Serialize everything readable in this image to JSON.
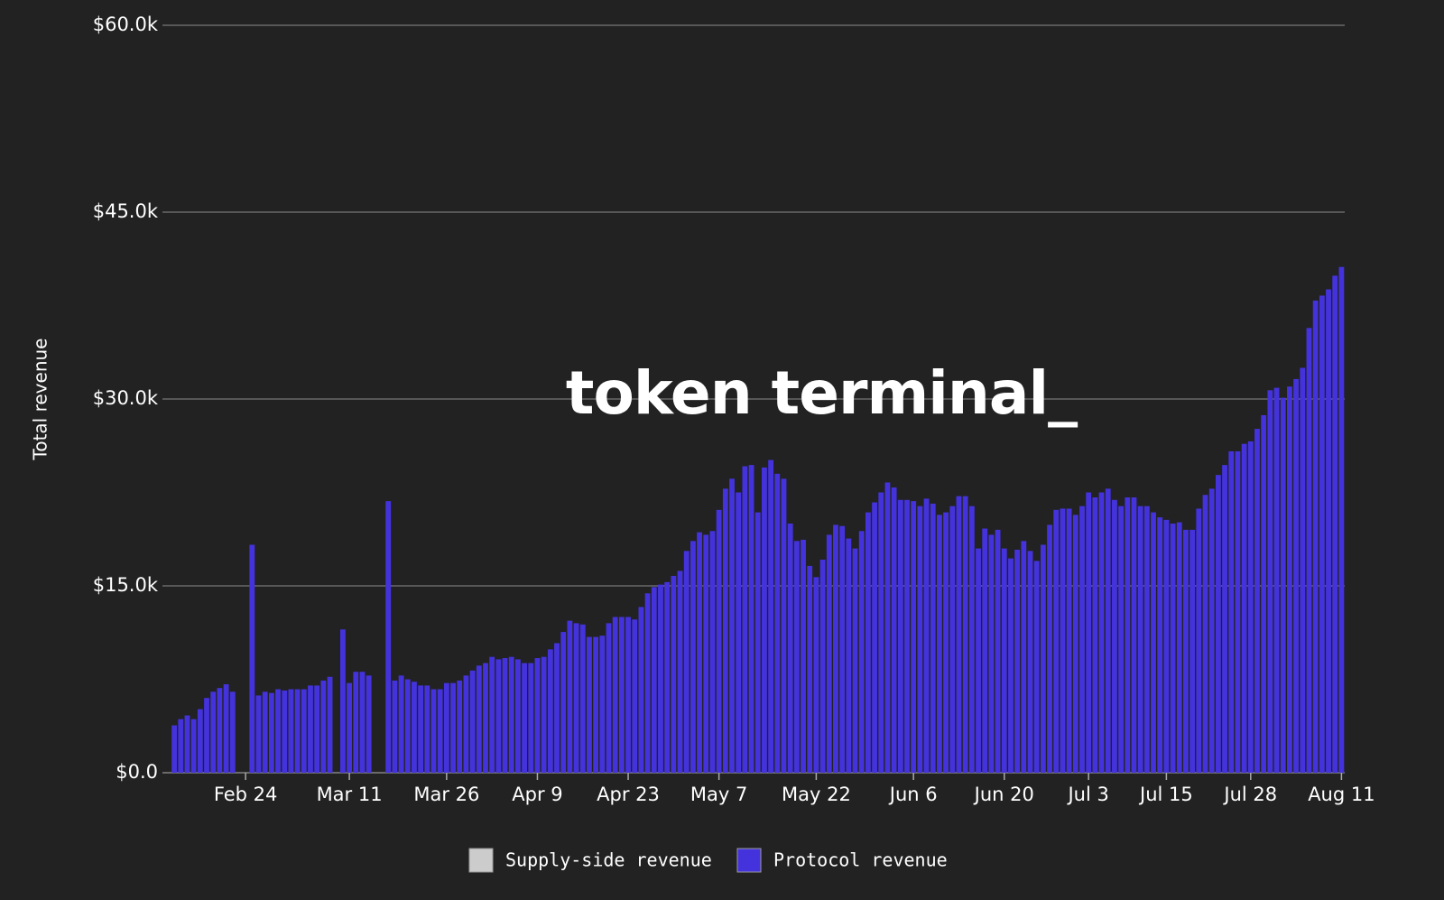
{
  "chart_data": {
    "type": "bar",
    "y_label": "Total revenue",
    "watermark": "token terminal_",
    "categories": [
      null,
      null,
      null,
      null,
      null,
      null,
      null,
      null,
      null,
      null,
      null,
      "Feb 24",
      null,
      null,
      null,
      null,
      null,
      null,
      null,
      null,
      null,
      null,
      null,
      null,
      null,
      null,
      null,
      "Mar 11",
      null,
      null,
      null,
      null,
      null,
      null,
      null,
      null,
      null,
      null,
      null,
      null,
      null,
      null,
      "Mar 26",
      null,
      null,
      null,
      null,
      null,
      null,
      null,
      null,
      null,
      null,
      null,
      null,
      null,
      "Apr 9",
      null,
      null,
      null,
      null,
      null,
      null,
      null,
      null,
      null,
      null,
      null,
      null,
      null,
      "Apr 23",
      null,
      null,
      null,
      null,
      null,
      null,
      null,
      null,
      null,
      null,
      null,
      null,
      null,
      "May 7",
      null,
      null,
      null,
      null,
      null,
      null,
      null,
      null,
      null,
      null,
      null,
      null,
      null,
      null,
      "May 22",
      null,
      null,
      null,
      null,
      null,
      null,
      null,
      null,
      null,
      null,
      null,
      null,
      null,
      null,
      "Jun 6",
      null,
      null,
      null,
      null,
      null,
      null,
      null,
      null,
      null,
      null,
      null,
      null,
      null,
      "Jun 20",
      null,
      null,
      null,
      null,
      null,
      null,
      null,
      null,
      null,
      null,
      null,
      null,
      "Jul 3",
      null,
      null,
      null,
      null,
      null,
      null,
      null,
      null,
      null,
      null,
      null,
      "Jul 15",
      null,
      null,
      null,
      null,
      null,
      null,
      null,
      null,
      null,
      null,
      null,
      null,
      "Jul 28",
      null,
      null,
      null,
      null,
      null,
      null,
      null,
      null,
      null,
      null,
      null,
      null,
      null,
      "Aug 11"
    ],
    "series": [
      {
        "name": "Protocol revenue",
        "color": "#4433dd",
        "values": [
          3.8,
          4.3,
          4.6,
          4.3,
          5.1,
          6.0,
          6.5,
          6.8,
          7.1,
          6.5,
          0,
          0,
          18.3,
          6.2,
          6.5,
          6.4,
          6.7,
          6.6,
          6.7,
          6.7,
          6.7,
          7.0,
          7.0,
          7.4,
          7.7,
          0,
          11.5,
          7.2,
          8.1,
          8.1,
          7.8,
          0,
          0,
          21.8,
          7.4,
          7.8,
          7.5,
          7.3,
          7.0,
          7.0,
          6.7,
          6.7,
          7.2,
          7.2,
          7.4,
          7.8,
          8.2,
          8.6,
          8.8,
          9.3,
          9.1,
          9.2,
          9.3,
          9.1,
          8.8,
          8.8,
          9.2,
          9.3,
          9.9,
          10.4,
          11.3,
          12.2,
          12.0,
          11.9,
          10.9,
          10.9,
          11.0,
          12.0,
          12.5,
          12.5,
          12.5,
          12.3,
          13.3,
          14.4,
          14.9,
          15.1,
          15.3,
          15.8,
          16.2,
          17.8,
          18.6,
          19.3,
          19.1,
          19.4,
          21.1,
          22.8,
          23.6,
          22.5,
          24.6,
          24.7,
          20.9,
          24.5,
          25.1,
          24.0,
          23.6,
          20.0,
          18.6,
          18.7,
          16.6,
          15.7,
          17.1,
          19.1,
          19.9,
          19.8,
          18.8,
          18.0,
          19.4,
          20.9,
          21.7,
          22.5,
          23.3,
          22.9,
          21.9,
          21.9,
          21.8,
          21.4,
          22.0,
          21.6,
          20.7,
          20.9,
          21.4,
          22.2,
          22.2,
          21.4,
          18.0,
          19.6,
          19.1,
          19.5,
          18.0,
          17.2,
          17.9,
          18.6,
          17.8,
          17.0,
          18.3,
          19.9,
          21.1,
          21.2,
          21.2,
          20.7,
          21.4,
          22.5,
          22.1,
          22.5,
          22.8,
          21.9,
          21.4,
          22.1,
          22.1,
          21.4,
          21.4,
          20.9,
          20.5,
          20.3,
          20.0,
          20.1,
          19.5,
          19.5,
          21.2,
          22.3,
          22.8,
          23.9,
          24.7,
          25.8,
          25.8,
          26.4,
          26.6,
          27.6,
          28.7,
          30.7,
          30.9,
          30.1,
          31.0,
          31.6,
          32.5,
          35.7,
          37.9,
          38.3,
          38.8,
          39.9,
          40.6
        ]
      }
    ],
    "legend": [
      {
        "name": "Supply-side revenue",
        "color": "#cccccc"
      },
      {
        "name": "Protocol revenue",
        "color": "#4433dd"
      }
    ],
    "ylim": [
      0,
      60
    ],
    "yticks": [
      {
        "value": 0,
        "label": "$0.0"
      },
      {
        "value": 15,
        "label": "$15.0k"
      },
      {
        "value": 30,
        "label": "$30.0k"
      },
      {
        "value": 45,
        "label": "$45.0k"
      },
      {
        "value": 60,
        "label": "$60.0k"
      }
    ],
    "grid": true
  }
}
